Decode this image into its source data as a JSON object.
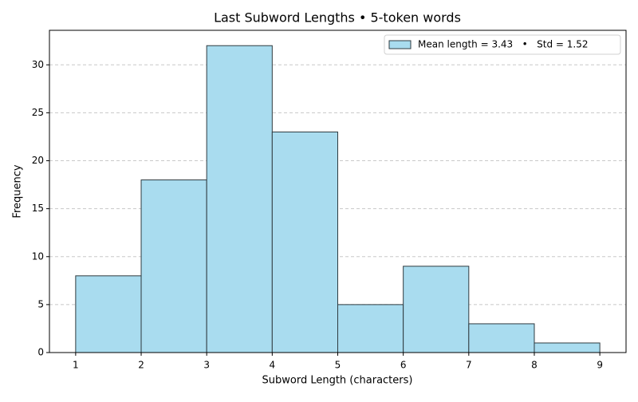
{
  "chart_data": {
    "type": "histogram",
    "title": "Last Subword Lengths • 5-token words",
    "xlabel": "Subword Length (characters)",
    "ylabel": "Frequency",
    "bins": [
      1,
      2,
      3,
      4,
      5,
      6,
      7,
      8,
      9
    ],
    "series": [
      {
        "name": "Mean length = 3.43   •   Std = 1.52",
        "color": "#a9dcef",
        "edgecolor": "#2f3b40",
        "values": [
          8,
          18,
          32,
          23,
          5,
          9,
          3,
          1
        ]
      }
    ],
    "xlim": [
      0.6,
      9.4
    ],
    "xticks": [
      1,
      2,
      3,
      4,
      5,
      6,
      7,
      8,
      9
    ],
    "ylim": [
      0,
      33.6
    ],
    "yticks": [
      0,
      5,
      10,
      15,
      20,
      25,
      30
    ],
    "grid": "y",
    "legend": "upper right"
  }
}
